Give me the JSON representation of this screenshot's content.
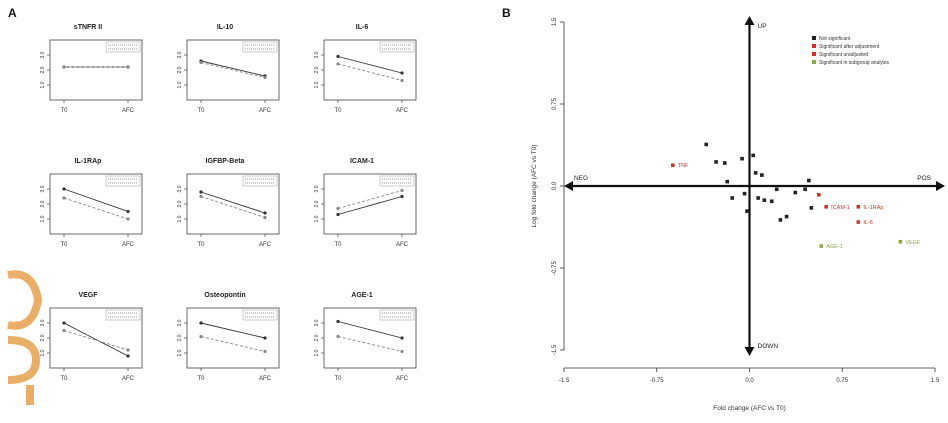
{
  "panels": {
    "a_label": "A",
    "b_label": "B"
  },
  "chart_data": [
    {
      "type": "line",
      "title": "sTNFR II",
      "categories": [
        "T0",
        "AFC"
      ],
      "ylim": [
        0,
        4
      ],
      "yticks": [
        "1.0",
        "2.0",
        "3.0"
      ],
      "series": [
        {
          "values": [
            2.2,
            2.2
          ],
          "style": "solid"
        },
        {
          "values": [
            2.2,
            2.2
          ],
          "style": "dashed"
        }
      ]
    },
    {
      "type": "line",
      "title": "IL-10",
      "categories": [
        "T0",
        "AFC"
      ],
      "ylim": [
        0,
        4
      ],
      "yticks": [
        "1.0",
        "2.0",
        "3.0"
      ],
      "series": [
        {
          "values": [
            2.6,
            1.6
          ],
          "style": "solid"
        },
        {
          "values": [
            2.5,
            1.5
          ],
          "style": "dashed"
        }
      ]
    },
    {
      "type": "line",
      "title": "IL-6",
      "categories": [
        "T0",
        "AFC"
      ],
      "ylim": [
        0,
        4
      ],
      "yticks": [
        "1.0",
        "2.0",
        "3.0"
      ],
      "series": [
        {
          "values": [
            2.9,
            1.8
          ],
          "style": "solid"
        },
        {
          "values": [
            2.4,
            1.3
          ],
          "style": "dashed"
        }
      ]
    },
    {
      "type": "line",
      "title": "IL-1RAp",
      "categories": [
        "T0",
        "AFC"
      ],
      "ylim": [
        0,
        4
      ],
      "yticks": [
        "1.0",
        "2.0",
        "3.0"
      ],
      "series": [
        {
          "values": [
            3.0,
            1.5
          ],
          "style": "solid"
        },
        {
          "values": [
            2.4,
            1.0
          ],
          "style": "dashed"
        }
      ]
    },
    {
      "type": "line",
      "title": "IGFBP-Beta",
      "categories": [
        "T0",
        "AFC"
      ],
      "ylim": [
        0,
        4
      ],
      "yticks": [
        "1.0",
        "2.0",
        "3.0"
      ],
      "series": [
        {
          "values": [
            2.8,
            1.4
          ],
          "style": "solid"
        },
        {
          "values": [
            2.5,
            1.1
          ],
          "style": "dashed"
        }
      ]
    },
    {
      "type": "line",
      "title": "ICAM-1",
      "categories": [
        "T0",
        "AFC"
      ],
      "ylim": [
        0,
        4
      ],
      "yticks": [
        "1.0",
        "2.0",
        "3.0"
      ],
      "series": [
        {
          "values": [
            1.3,
            2.5
          ],
          "style": "solid"
        },
        {
          "values": [
            1.7,
            2.9
          ],
          "style": "dashed"
        }
      ]
    },
    {
      "type": "line",
      "title": "VEGF",
      "categories": [
        "T0",
        "AFC"
      ],
      "ylim": [
        0,
        4
      ],
      "yticks": [
        "1.0",
        "2.0",
        "3.0"
      ],
      "series": [
        {
          "values": [
            3.0,
            0.8
          ],
          "style": "solid"
        },
        {
          "values": [
            2.5,
            1.2
          ],
          "style": "dashed"
        }
      ]
    },
    {
      "type": "line",
      "title": "Osteopontin",
      "categories": [
        "T0",
        "AFC"
      ],
      "ylim": [
        0,
        4
      ],
      "yticks": [
        "1.0",
        "2.0",
        "3.0"
      ],
      "series": [
        {
          "values": [
            3.0,
            2.0
          ],
          "style": "solid"
        },
        {
          "values": [
            2.1,
            1.1
          ],
          "style": "dashed"
        }
      ]
    },
    {
      "type": "line",
      "title": "AGE-1",
      "categories": [
        "T0",
        "AFC"
      ],
      "ylim": [
        0,
        4
      ],
      "yticks": [
        "1.0",
        "2.0",
        "3.0"
      ],
      "series": [
        {
          "values": [
            3.1,
            2.0
          ],
          "style": "solid"
        },
        {
          "values": [
            2.1,
            1.1
          ],
          "style": "dashed"
        }
      ]
    },
    {
      "type": "scatter",
      "xlabel": "Fold change (AFC vs T0)",
      "ylabel": "Log fold change (AFC vs T0)",
      "xlim": [
        -1.5,
        1.5
      ],
      "ylim": [
        -1.5,
        1.5
      ],
      "xticks": [
        -1.5,
        -0.75,
        0,
        0.75,
        1.5
      ],
      "xtick_labels": [
        "-1.5",
        "-0.75",
        "0.0",
        "0.75",
        "1.5"
      ],
      "yticks": [
        -1.5,
        -0.75,
        0,
        0.75,
        1.5
      ],
      "ytick_labels": [
        "-1.5",
        "-0.75",
        "0.0",
        "0.75",
        "1.5"
      ],
      "quadrants": {
        "top": "UP",
        "bottom": "DOWN",
        "left": "NEG",
        "right": "POS"
      },
      "legend_position": "top-right",
      "legend": [
        {
          "label": "Not significant",
          "color": "#222222"
        },
        {
          "label": "Significant after adjustment",
          "color": "#c0392b"
        },
        {
          "label": "Significant unadjusted",
          "color": "#c0392b"
        },
        {
          "label": "Significant in subgroup analysis",
          "color": "#8aa84a"
        }
      ],
      "points": [
        {
          "x": -0.62,
          "y": 0.19,
          "color": "#c0392b",
          "label": "TNF"
        },
        {
          "x": -0.35,
          "y": 0.38,
          "color": "#222222"
        },
        {
          "x": -0.27,
          "y": 0.22,
          "color": "#222222"
        },
        {
          "x": -0.2,
          "y": 0.21,
          "color": "#222222"
        },
        {
          "x": -0.18,
          "y": 0.04,
          "color": "#222222"
        },
        {
          "x": -0.14,
          "y": -0.11,
          "color": "#222222"
        },
        {
          "x": -0.06,
          "y": 0.25,
          "color": "#222222"
        },
        {
          "x": 0.03,
          "y": 0.28,
          "color": "#222222"
        },
        {
          "x": 0.05,
          "y": 0.12,
          "color": "#222222"
        },
        {
          "x": 0.1,
          "y": 0.1,
          "color": "#222222"
        },
        {
          "x": -0.04,
          "y": -0.07,
          "color": "#222222"
        },
        {
          "x": -0.02,
          "y": -0.23,
          "color": "#222222"
        },
        {
          "x": 0.07,
          "y": -0.11,
          "color": "#222222"
        },
        {
          "x": 0.12,
          "y": -0.13,
          "color": "#222222"
        },
        {
          "x": 0.18,
          "y": -0.14,
          "color": "#222222"
        },
        {
          "x": 0.22,
          "y": -0.03,
          "color": "#222222"
        },
        {
          "x": 0.25,
          "y": -0.31,
          "color": "#222222"
        },
        {
          "x": 0.3,
          "y": -0.28,
          "color": "#222222"
        },
        {
          "x": 0.37,
          "y": -0.06,
          "color": "#222222"
        },
        {
          "x": 0.45,
          "y": -0.03,
          "color": "#222222"
        },
        {
          "x": 0.48,
          "y": 0.05,
          "color": "#222222"
        },
        {
          "x": 0.5,
          "y": -0.2,
          "color": "#222222"
        },
        {
          "x": 0.56,
          "y": -0.08,
          "color": "#c0392b"
        },
        {
          "x": 0.62,
          "y": -0.19,
          "color": "#c0392b",
          "label": "ICAM-1"
        },
        {
          "x": 0.88,
          "y": -0.19,
          "color": "#c0392b",
          "label": "IL-1RAp"
        },
        {
          "x": 0.88,
          "y": -0.33,
          "color": "#c0392b",
          "label": "IL-6"
        },
        {
          "x": 0.58,
          "y": -0.55,
          "color": "#8aa84a",
          "label": "AGE-1"
        },
        {
          "x": 1.22,
          "y": -0.51,
          "color": "#8aa84a",
          "label": "VEGF"
        }
      ]
    }
  ]
}
